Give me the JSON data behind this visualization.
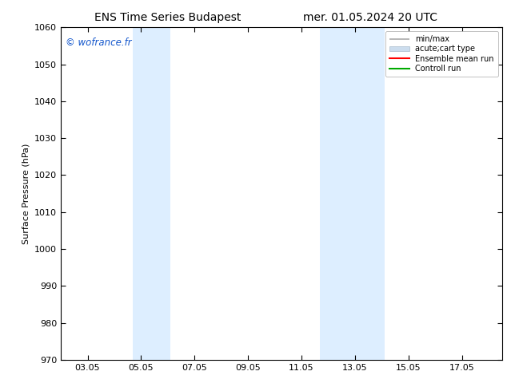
{
  "title_left": "ENS Time Series Budapest",
  "title_right": "mer. 01.05.2024 20 UTC",
  "ylabel": "Surface Pressure (hPa)",
  "ylim": [
    970,
    1060
  ],
  "yticks": [
    970,
    980,
    990,
    1000,
    1010,
    1020,
    1030,
    1040,
    1050,
    1060
  ],
  "xtick_labels": [
    "03.05",
    "05.05",
    "07.05",
    "09.05",
    "11.05",
    "13.05",
    "15.05",
    "17.05"
  ],
  "xtick_positions": [
    2,
    4,
    6,
    8,
    10,
    12,
    14,
    16
  ],
  "xlim": [
    1.0,
    17.5
  ],
  "shaded_bands": [
    {
      "xmin": 3.7,
      "xmax": 5.1
    },
    {
      "xmin": 10.7,
      "xmax": 13.1
    }
  ],
  "shade_color": "#ddeeff",
  "watermark": "© wofrance.fr",
  "watermark_color": "#1155cc",
  "legend_entries": [
    "min/max",
    "acute;cart type",
    "Ensemble mean run",
    "Controll run"
  ],
  "legend_line_colors": [
    "#aaaaaa",
    "#cccccc",
    "#ff0000",
    "#00aa00"
  ],
  "background_color": "#ffffff",
  "title_fontsize": 10,
  "axis_fontsize": 8,
  "tick_fontsize": 8
}
